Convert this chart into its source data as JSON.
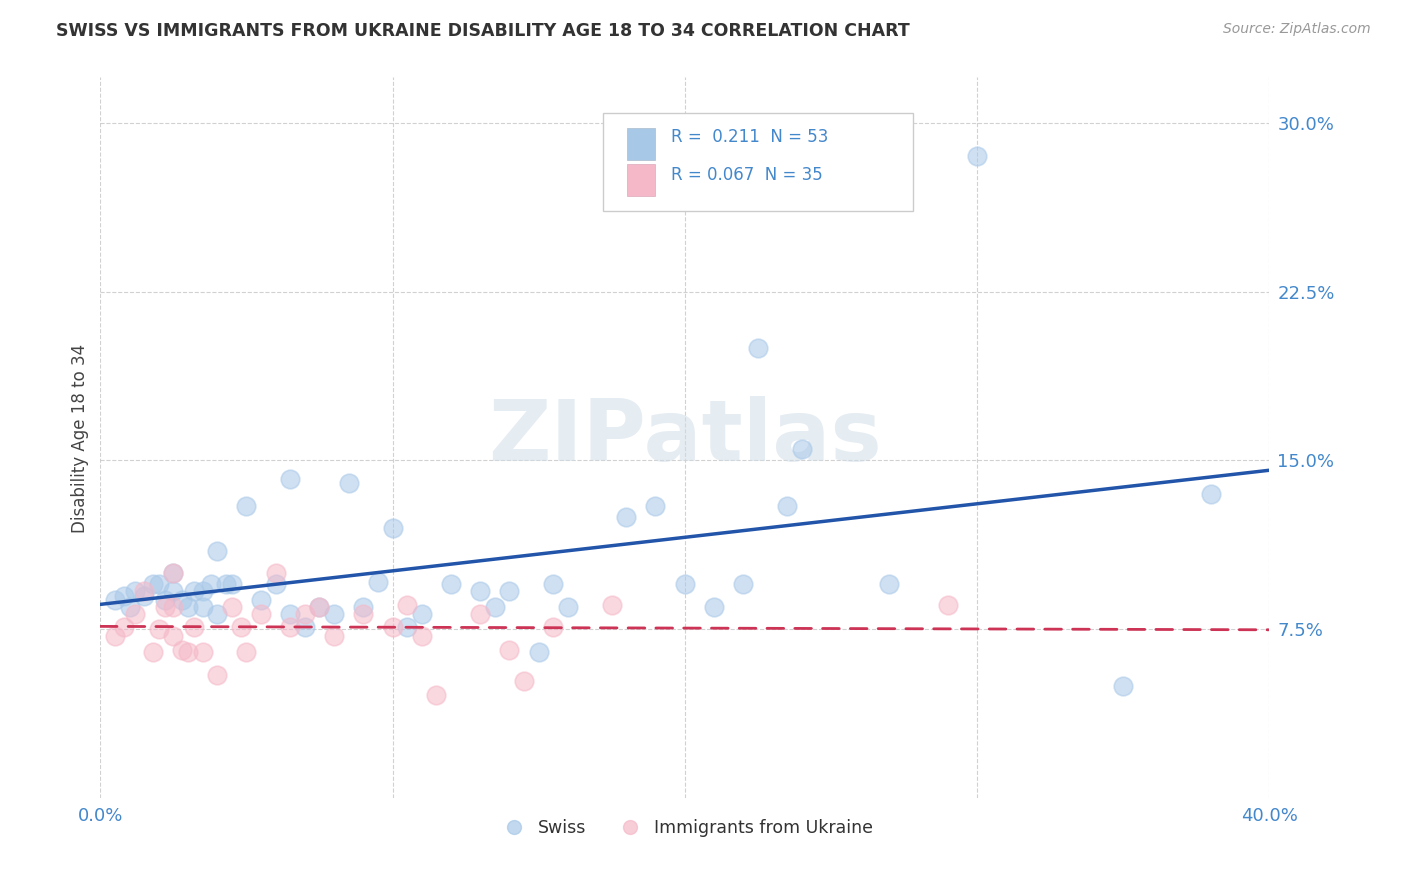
{
  "title": "SWISS VS IMMIGRANTS FROM UKRAINE DISABILITY AGE 18 TO 34 CORRELATION CHART",
  "source": "Source: ZipAtlas.com",
  "ylabel": "Disability Age 18 to 34",
  "xlim": [
    0.0,
    0.4
  ],
  "ylim": [
    0.0,
    0.32
  ],
  "xticks": [
    0.0,
    0.1,
    0.2,
    0.3,
    0.4
  ],
  "xticklabels": [
    "0.0%",
    "",
    "",
    "",
    "40.0%"
  ],
  "yticks": [
    0.075,
    0.15,
    0.225,
    0.3
  ],
  "yticklabels": [
    "7.5%",
    "15.0%",
    "22.5%",
    "30.0%"
  ],
  "background_color": "#ffffff",
  "grid_color": "#cccccc",
  "swiss_color": "#a8c8e8",
  "ukraine_color": "#f5b8c8",
  "swiss_line_color": "#2255aa",
  "ukraine_line_color": "#cc3355",
  "swiss_R": 0.211,
  "swiss_N": 53,
  "ukraine_R": 0.067,
  "ukraine_N": 35,
  "swiss_x": [
    0.005,
    0.008,
    0.01,
    0.012,
    0.015,
    0.018,
    0.02,
    0.022,
    0.025,
    0.025,
    0.028,
    0.03,
    0.032,
    0.035,
    0.035,
    0.038,
    0.04,
    0.04,
    0.043,
    0.045,
    0.05,
    0.055,
    0.06,
    0.065,
    0.065,
    0.07,
    0.075,
    0.08,
    0.085,
    0.09,
    0.095,
    0.1,
    0.105,
    0.11,
    0.12,
    0.13,
    0.135,
    0.14,
    0.15,
    0.155,
    0.16,
    0.18,
    0.19,
    0.2,
    0.21,
    0.22,
    0.225,
    0.235,
    0.24,
    0.27,
    0.3,
    0.35,
    0.38
  ],
  "swiss_y": [
    0.088,
    0.09,
    0.085,
    0.092,
    0.09,
    0.095,
    0.095,
    0.088,
    0.092,
    0.1,
    0.088,
    0.085,
    0.092,
    0.085,
    0.092,
    0.095,
    0.11,
    0.082,
    0.095,
    0.095,
    0.13,
    0.088,
    0.095,
    0.082,
    0.142,
    0.076,
    0.085,
    0.082,
    0.14,
    0.085,
    0.096,
    0.12,
    0.076,
    0.082,
    0.095,
    0.092,
    0.085,
    0.092,
    0.065,
    0.095,
    0.085,
    0.125,
    0.13,
    0.095,
    0.085,
    0.095,
    0.2,
    0.13,
    0.155,
    0.095,
    0.285,
    0.05,
    0.135
  ],
  "ukraine_x": [
    0.005,
    0.008,
    0.012,
    0.015,
    0.018,
    0.02,
    0.022,
    0.025,
    0.025,
    0.025,
    0.028,
    0.03,
    0.032,
    0.035,
    0.04,
    0.045,
    0.048,
    0.05,
    0.055,
    0.06,
    0.065,
    0.07,
    0.075,
    0.08,
    0.09,
    0.1,
    0.105,
    0.11,
    0.115,
    0.13,
    0.14,
    0.145,
    0.155,
    0.175,
    0.29
  ],
  "ukraine_y": [
    0.072,
    0.076,
    0.082,
    0.092,
    0.065,
    0.075,
    0.085,
    0.1,
    0.085,
    0.072,
    0.066,
    0.065,
    0.076,
    0.065,
    0.055,
    0.085,
    0.076,
    0.065,
    0.082,
    0.1,
    0.076,
    0.082,
    0.085,
    0.072,
    0.082,
    0.076,
    0.086,
    0.072,
    0.046,
    0.082,
    0.066,
    0.052,
    0.076,
    0.086,
    0.086
  ],
  "watermark_text": "ZIPatlas",
  "title_color": "#333333",
  "tick_color": "#4488cc",
  "ylabel_color": "#444444",
  "legend_text_color": "#4488cc",
  "source_color": "#999999"
}
